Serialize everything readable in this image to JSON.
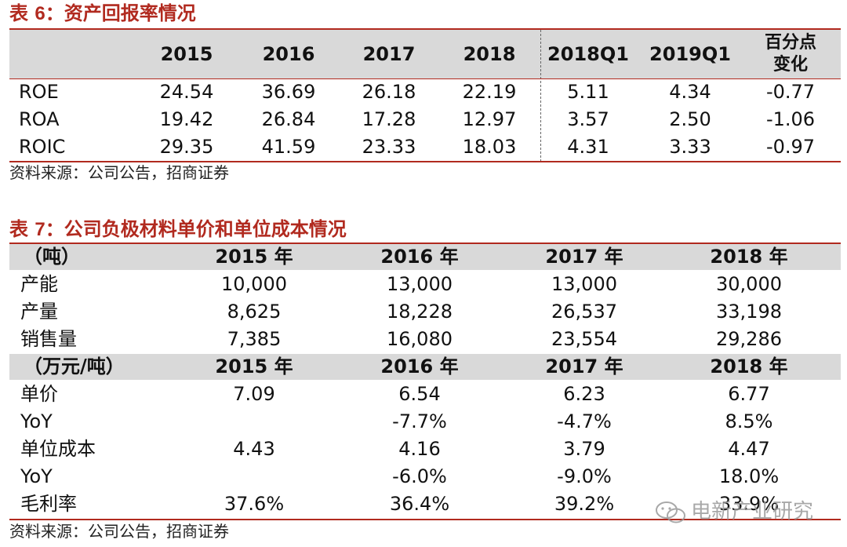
{
  "table6": {
    "title_prefix": "表",
    "title_num": "6",
    "title_text": "资产回报率情况",
    "columns": [
      "2015",
      "2016",
      "2017",
      "2018",
      "2018Q1",
      "2019Q1"
    ],
    "change_header_line1": "百分点",
    "change_header_line2": "变化",
    "rows": [
      {
        "label": "ROE",
        "values": [
          "24.54",
          "36.69",
          "26.18",
          "22.19",
          "5.11",
          "4.34",
          "-0.77"
        ]
      },
      {
        "label": "ROA",
        "values": [
          "19.42",
          "26.84",
          "17.28",
          "12.97",
          "3.57",
          "2.50",
          "-1.06"
        ]
      },
      {
        "label": "ROIC",
        "values": [
          "29.35",
          "41.59",
          "23.33",
          "18.03",
          "4.31",
          "3.33",
          "-0.97"
        ]
      }
    ],
    "source": "资料来源：公司公告，招商证券"
  },
  "table7": {
    "title_prefix": "表",
    "title_num": "7",
    "title_text": "公司负极材料单价和单位成本情况",
    "section1_unit": "（吨）",
    "section2_unit": "（万元/吨）",
    "years": [
      "2015 年",
      "2016 年",
      "2017 年",
      "2018 年"
    ],
    "section1_rows": [
      {
        "label": "产能",
        "values": [
          "10,000",
          "13,000",
          "13,000",
          "30,000"
        ]
      },
      {
        "label": "产量",
        "values": [
          "8,625",
          "18,228",
          "26,537",
          "33,198"
        ]
      },
      {
        "label": "销售量",
        "values": [
          "7,385",
          "16,080",
          "23,554",
          "29,286"
        ]
      }
    ],
    "section2_rows": [
      {
        "label": "单价",
        "values": [
          "7.09",
          "6.54",
          "6.23",
          "6.77"
        ]
      },
      {
        "label": "YoY",
        "values": [
          "",
          "-7.7%",
          "-4.7%",
          "8.5%"
        ]
      },
      {
        "label": "单位成本",
        "values": [
          "4.43",
          "4.16",
          "3.79",
          "4.47"
        ]
      },
      {
        "label": "YoY",
        "values": [
          "",
          "-6.0%",
          "-9.0%",
          "18.0%"
        ]
      },
      {
        "label": "毛利率",
        "values": [
          "37.6%",
          "36.4%",
          "39.2%",
          "33.9%"
        ]
      }
    ],
    "source": "资料来源：公司公告，招商证券"
  },
  "watermark": "电新产业研究",
  "colors": {
    "accent": "#b12a1f",
    "header_bg": "#d9d9d9"
  }
}
